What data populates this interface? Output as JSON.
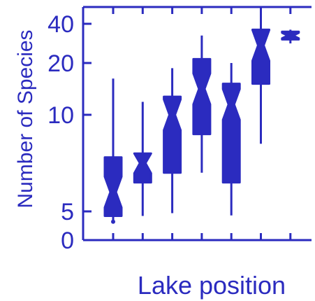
{
  "chart_data": {
    "type": "boxplot",
    "notched": true,
    "xlabel": "Lake position",
    "ylabel": "Number of Species",
    "y_scale": "nonlinear (compressed toward top)",
    "y_tick_values": [
      0,
      5,
      10,
      20,
      40
    ],
    "y_tick_labels": [
      "0",
      "5",
      "10",
      "20",
      "40"
    ],
    "ylim": [
      0,
      48
    ],
    "x_tick_count": 8,
    "x_tick_labels": [],
    "grid": false,
    "legend": "none",
    "color": "#2b2bbf",
    "boxes": [
      {
        "position": 1,
        "whisker_low": 3.3,
        "q1": 4.2,
        "median": 6.0,
        "q3": 7.8,
        "whisker_high": 17,
        "outliers": [
          3.2
        ]
      },
      {
        "position": 2,
        "whisker_low": 4.2,
        "q1": 6.5,
        "median": 7.5,
        "q3": 8.0,
        "whisker_high": 12.5,
        "outliers": []
      },
      {
        "position": 3,
        "whisker_low": 4.7,
        "q1": 7.0,
        "median": 10.0,
        "q3": 13.5,
        "whisker_high": 19,
        "outliers": []
      },
      {
        "position": 4,
        "whisker_low": 7.0,
        "q1": 9.0,
        "median": 15.0,
        "q3": 22.0,
        "whisker_high": 34,
        "outliers": []
      },
      {
        "position": 5,
        "whisker_low": 4.3,
        "q1": 6.5,
        "median": 12.0,
        "q3": 16.0,
        "whisker_high": 20,
        "outliers": []
      },
      {
        "position": 6,
        "whisker_low": 8.5,
        "q1": 16.0,
        "median": 29.0,
        "q3": 37.0,
        "whisker_high": 45,
        "outliers": []
      },
      {
        "position": 7,
        "whisker_low": 30.0,
        "q1": 32.0,
        "median": 34.0,
        "q3": 36.0,
        "whisker_high": 37,
        "outliers": []
      }
    ]
  }
}
